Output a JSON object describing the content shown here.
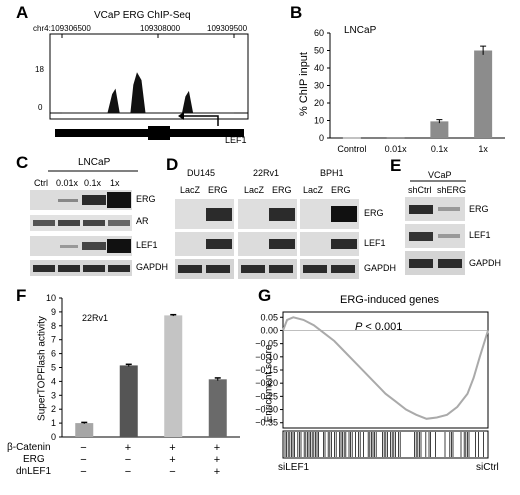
{
  "panels": {
    "A": {
      "letter": "A",
      "title": "VCaP ERG ChIP-Seq",
      "coords": [
        "chr4:109306500",
        "109308000",
        "109309500"
      ],
      "yticks": [
        "18",
        "0"
      ],
      "gene": "LEF1"
    },
    "B": {
      "letter": "B",
      "cell_line": "LNCaP",
      "ylabel": "% ChIP input"
    },
    "C": {
      "letter": "C",
      "cell_line": "LNCaP",
      "lanes": [
        "Ctrl",
        "0.01x",
        "0.1x",
        "1x"
      ],
      "proteins": [
        "ERG",
        "AR",
        "LEF1",
        "GAPDH"
      ]
    },
    "D": {
      "letter": "D",
      "groups": [
        {
          "name": "DU145",
          "lanes": [
            "LacZ",
            "ERG"
          ]
        },
        {
          "name": "22Rv1",
          "lanes": [
            "LacZ",
            "ERG"
          ]
        },
        {
          "name": "BPH1",
          "lanes": [
            "LacZ",
            "ERG"
          ]
        }
      ],
      "proteins": [
        "ERG",
        "LEF1",
        "GAPDH"
      ]
    },
    "E": {
      "letter": "E",
      "cell_line": "VCaP",
      "lanes": [
        "shCtrl",
        "shERG"
      ],
      "proteins": [
        "ERG",
        "LEF1",
        "GAPDH"
      ]
    },
    "F": {
      "letter": "F",
      "cell_line": "22Rv1",
      "ylabel": "SuperTOPFlash activity",
      "row_labels": [
        "β-Catenin",
        "ERG",
        "dnLEF1"
      ],
      "conditions": [
        [
          "−",
          "−",
          "−"
        ],
        [
          "+",
          "−",
          "−"
        ],
        [
          "+",
          "+",
          "−"
        ],
        [
          "+",
          "+",
          "+"
        ]
      ]
    },
    "G": {
      "letter": "G",
      "title": "ERG-induced genes",
      "pvalue_italic": "P",
      "pvalue_rest": " < 0.001",
      "ylabel": "Enrichment score",
      "left_label": "siLEF1",
      "right_label": "siCtrl"
    }
  },
  "chart_data": [
    {
      "id": "B",
      "type": "bar",
      "categories": [
        "Control",
        "0.01x",
        "0.1x",
        "1x"
      ],
      "values": [
        0.3,
        0.5,
        9.5,
        50
      ],
      "errors": [
        0,
        0,
        1,
        2.5
      ],
      "ylim": [
        0,
        60
      ],
      "yticks": [
        0,
        10,
        20,
        30,
        40,
        50,
        60
      ],
      "ylabel": "% ChIP input",
      "bar_color": "#8c8c8c"
    },
    {
      "id": "F",
      "type": "bar",
      "categories": [
        "1",
        "2",
        "3",
        "4"
      ],
      "values": [
        1.0,
        5.15,
        8.75,
        4.15
      ],
      "errors": [
        0.05,
        0.08,
        0.05,
        0.1
      ],
      "ylim": [
        0,
        10
      ],
      "yticks": [
        0,
        1,
        2,
        3,
        4,
        5,
        6,
        7,
        8,
        9,
        10
      ],
      "ylabel": "SuperTOPFlash activity",
      "colors": [
        "#a6a6a6",
        "#555555",
        "#c4c4c4",
        "#6a6a6a"
      ]
    },
    {
      "id": "G",
      "type": "line",
      "title": "ERG-induced genes",
      "ylabel": "Enrichment score",
      "ylim": [
        -0.37,
        0.07
      ],
      "yticks": [
        0.05,
        0.0,
        -0.05,
        -0.1,
        -0.15,
        -0.2,
        -0.25,
        -0.3,
        -0.35
      ],
      "ytick_labels": [
        "0.05",
        "0.00",
        "−0.05",
        "−0.10",
        "−0.15",
        "−0.20",
        "−0.25",
        "−0.30",
        "−0.35"
      ],
      "x": [
        0,
        0.02,
        0.05,
        0.1,
        0.15,
        0.2,
        0.25,
        0.3,
        0.35,
        0.4,
        0.45,
        0.5,
        0.55,
        0.6,
        0.65,
        0.7,
        0.75,
        0.8,
        0.85,
        0.9,
        0.93,
        0.96,
        1.0
      ],
      "y": [
        0.0,
        0.04,
        0.05,
        0.04,
        0.02,
        -0.01,
        -0.04,
        -0.08,
        -0.12,
        -0.16,
        -0.2,
        -0.24,
        -0.27,
        -0.3,
        -0.32,
        -0.335,
        -0.33,
        -0.32,
        -0.29,
        -0.24,
        -0.18,
        -0.1,
        0.0
      ],
      "line_color": "#aaaaaa"
    },
    {
      "id": "A",
      "type": "area",
      "x": [
        109306500,
        109307300,
        109307380,
        109307430,
        109307500,
        109307700,
        109307750,
        109307810,
        109307880,
        109307950,
        109308600,
        109308660,
        109308710,
        109308780,
        109309500
      ],
      "y": [
        0,
        0,
        8,
        10,
        0,
        0,
        12,
        17,
        14,
        0,
        0,
        7,
        9,
        0,
        0
      ],
      "ylim": [
        0,
        18
      ],
      "xlim": [
        109306500,
        109309500
      ]
    }
  ]
}
